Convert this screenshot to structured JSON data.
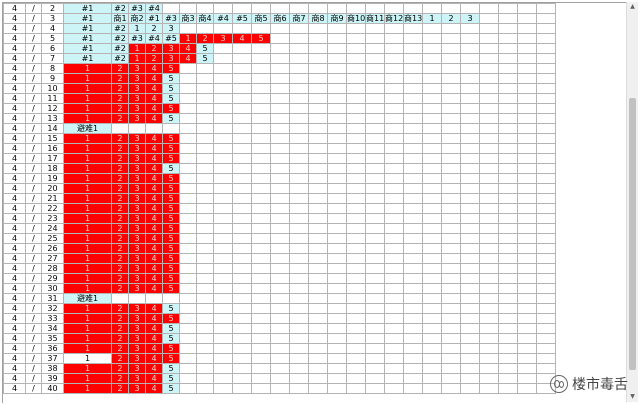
{
  "columns": 30,
  "colors": {
    "cyan": "#cdf5f7",
    "red": "#ff0000",
    "grid": "#b4b4b4"
  },
  "rows": [
    {
      "c0": "4",
      "c1": "/",
      "c2": "2",
      "cells": [
        [
          "c",
          "#1",
          3
        ],
        [
          "c",
          "#2"
        ],
        [
          "c",
          "#3"
        ],
        [
          "c",
          "#4"
        ]
      ]
    },
    {
      "c0": "4",
      "c1": "/",
      "c2": "3",
      "cells": [
        [
          "c",
          "#1",
          3
        ],
        [
          "c",
          "商1"
        ],
        [
          "c",
          "商2"
        ],
        [
          "c",
          "#1"
        ],
        [
          "c",
          "#3"
        ],
        [
          "c",
          "商3"
        ],
        [
          "c",
          "商4"
        ],
        [
          "c",
          "#4"
        ],
        [
          "c",
          "#5"
        ],
        [
          "c",
          "商5"
        ],
        [
          "c",
          "商6"
        ],
        [
          "c",
          "商7"
        ],
        [
          "c",
          "商8"
        ],
        [
          "c",
          "商9"
        ],
        [
          "c",
          "商10"
        ],
        [
          "c",
          "商11"
        ],
        [
          "c",
          "商12"
        ],
        [
          "c",
          "商13"
        ],
        [
          "c",
          "1"
        ],
        [
          "c",
          "2"
        ],
        [
          "c",
          "3"
        ]
      ]
    },
    {
      "c0": "4",
      "c1": "/",
      "c2": "4",
      "cells": [
        [
          "c",
          "#1",
          3
        ],
        [
          "c",
          "#2"
        ],
        [
          "c",
          "1"
        ],
        [
          "c",
          "2"
        ],
        [
          "c",
          "3"
        ]
      ]
    },
    {
      "c0": "4",
      "c1": "/",
      "c2": "5",
      "cells": [
        [
          "c",
          "#1",
          3
        ],
        [
          "c",
          "#2"
        ],
        [
          "c",
          "#3"
        ],
        [
          "c",
          "#4"
        ],
        [
          "c",
          "#5"
        ],
        [
          "r",
          "1"
        ],
        [
          "r",
          "2"
        ],
        [
          "r",
          "3"
        ],
        [
          "r",
          "4"
        ],
        [
          "r",
          "5"
        ]
      ]
    },
    {
      "c0": "4",
      "c1": "/",
      "c2": "6",
      "cells": [
        [
          "c",
          "#1",
          3
        ],
        [
          "c",
          "#2"
        ],
        [
          "r",
          "1"
        ],
        [
          "r",
          "2"
        ],
        [
          "r",
          "3"
        ],
        [
          "r",
          "4"
        ],
        [
          "c",
          "5"
        ]
      ]
    },
    {
      "c0": "4",
      "c1": "/",
      "c2": "7",
      "cells": [
        [
          "c",
          "#1",
          3
        ],
        [
          "c",
          "#2"
        ],
        [
          "r",
          "1"
        ],
        [
          "r",
          "2"
        ],
        [
          "r",
          "3"
        ],
        [
          "r",
          "4"
        ],
        [
          "c",
          "5"
        ]
      ]
    },
    {
      "c0": "4",
      "c1": "/",
      "c2": "8",
      "cells": [
        [
          "r",
          "1",
          3
        ],
        [
          "r",
          "2"
        ],
        [
          "r",
          "3"
        ],
        [
          "r",
          "4"
        ],
        [
          "r",
          "5"
        ]
      ]
    },
    {
      "c0": "4",
      "c1": "/",
      "c2": "9",
      "cells": [
        [
          "r",
          "1",
          3
        ],
        [
          "r",
          "2"
        ],
        [
          "r",
          "3"
        ],
        [
          "r",
          "4"
        ],
        [
          "c",
          "5"
        ]
      ]
    },
    {
      "c0": "4",
      "c1": "/",
      "c2": "10",
      "cells": [
        [
          "r",
          "1",
          3
        ],
        [
          "r",
          "2"
        ],
        [
          "r",
          "3"
        ],
        [
          "r",
          "4"
        ],
        [
          "c",
          "5"
        ]
      ]
    },
    {
      "c0": "4",
      "c1": "/",
      "c2": "11",
      "cells": [
        [
          "r",
          "1",
          3
        ],
        [
          "r",
          "2"
        ],
        [
          "r",
          "3"
        ],
        [
          "r",
          "4"
        ],
        [
          "c",
          "5"
        ]
      ]
    },
    {
      "c0": "4",
      "c1": "/",
      "c2": "12",
      "cells": [
        [
          "r",
          "1",
          3
        ],
        [
          "r",
          "2"
        ],
        [
          "r",
          "3"
        ],
        [
          "r",
          "4"
        ],
        [
          "r",
          "5"
        ]
      ]
    },
    {
      "c0": "4",
      "c1": "/",
      "c2": "13",
      "cells": [
        [
          "r",
          "1",
          3
        ],
        [
          "r",
          "2"
        ],
        [
          "r",
          "3"
        ],
        [
          "r",
          "4"
        ],
        [
          "c",
          "5"
        ]
      ]
    },
    {
      "c0": "4",
      "c1": "/",
      "c2": "14",
      "cells": [
        [
          "c",
          "避难1",
          3
        ]
      ]
    },
    {
      "c0": "4",
      "c1": "/",
      "c2": "15",
      "cells": [
        [
          "r",
          "1",
          3
        ],
        [
          "r",
          "2"
        ],
        [
          "r",
          "3"
        ],
        [
          "r",
          "4"
        ],
        [
          "r",
          "5"
        ]
      ]
    },
    {
      "c0": "4",
      "c1": "/",
      "c2": "16",
      "cells": [
        [
          "r",
          "1",
          3
        ],
        [
          "r",
          "2"
        ],
        [
          "r",
          "3"
        ],
        [
          "r",
          "4"
        ],
        [
          "r",
          "5"
        ]
      ]
    },
    {
      "c0": "4",
      "c1": "/",
      "c2": "17",
      "cells": [
        [
          "r",
          "1",
          3
        ],
        [
          "r",
          "2"
        ],
        [
          "r",
          "3"
        ],
        [
          "r",
          "4"
        ],
        [
          "r",
          "5"
        ]
      ]
    },
    {
      "c0": "4",
      "c1": "/",
      "c2": "18",
      "cells": [
        [
          "r",
          "1",
          3
        ],
        [
          "r",
          "2"
        ],
        [
          "r",
          "3"
        ],
        [
          "r",
          "4"
        ],
        [
          "c",
          "5"
        ]
      ]
    },
    {
      "c0": "4",
      "c1": "/",
      "c2": "19",
      "cells": [
        [
          "r",
          "1",
          3
        ],
        [
          "r",
          "2"
        ],
        [
          "r",
          "3"
        ],
        [
          "r",
          "4"
        ],
        [
          "r",
          "5"
        ]
      ]
    },
    {
      "c0": "4",
      "c1": "/",
      "c2": "20",
      "cells": [
        [
          "r",
          "1",
          3
        ],
        [
          "r",
          "2"
        ],
        [
          "r",
          "3"
        ],
        [
          "r",
          "4"
        ],
        [
          "r",
          "5"
        ]
      ]
    },
    {
      "c0": "4",
      "c1": "/",
      "c2": "21",
      "cells": [
        [
          "r",
          "1",
          3
        ],
        [
          "r",
          "2"
        ],
        [
          "r",
          "3"
        ],
        [
          "r",
          "4"
        ],
        [
          "r",
          "5"
        ]
      ]
    },
    {
      "c0": "4",
      "c1": "/",
      "c2": "22",
      "cells": [
        [
          "r",
          "1",
          3
        ],
        [
          "r",
          "2"
        ],
        [
          "r",
          "3"
        ],
        [
          "r",
          "4"
        ],
        [
          "r",
          "5"
        ]
      ]
    },
    {
      "c0": "4",
      "c1": "/",
      "c2": "23",
      "cells": [
        [
          "r",
          "1",
          3
        ],
        [
          "r",
          "2"
        ],
        [
          "r",
          "3"
        ],
        [
          "r",
          "4"
        ],
        [
          "r",
          "5"
        ]
      ]
    },
    {
      "c0": "4",
      "c1": "/",
      "c2": "24",
      "cells": [
        [
          "r",
          "1",
          3
        ],
        [
          "r",
          "2"
        ],
        [
          "r",
          "3"
        ],
        [
          "r",
          "4"
        ],
        [
          "r",
          "5"
        ]
      ]
    },
    {
      "c0": "4",
      "c1": "/",
      "c2": "25",
      "cells": [
        [
          "r",
          "1",
          3
        ],
        [
          "r",
          "2"
        ],
        [
          "r",
          "3"
        ],
        [
          "r",
          "4"
        ],
        [
          "r",
          "5"
        ]
      ]
    },
    {
      "c0": "4",
      "c1": "/",
      "c2": "26",
      "cells": [
        [
          "r",
          "1",
          3
        ],
        [
          "r",
          "2"
        ],
        [
          "r",
          "3"
        ],
        [
          "r",
          "4"
        ],
        [
          "r",
          "5"
        ]
      ]
    },
    {
      "c0": "4",
      "c1": "/",
      "c2": "27",
      "cells": [
        [
          "r",
          "1",
          3
        ],
        [
          "r",
          "2"
        ],
        [
          "r",
          "3"
        ],
        [
          "r",
          "4"
        ],
        [
          "r",
          "5"
        ]
      ]
    },
    {
      "c0": "4",
      "c1": "/",
      "c2": "28",
      "cells": [
        [
          "r",
          "1",
          3
        ],
        [
          "r",
          "2"
        ],
        [
          "r",
          "3"
        ],
        [
          "r",
          "4"
        ],
        [
          "r",
          "5"
        ]
      ]
    },
    {
      "c0": "4",
      "c1": "/",
      "c2": "29",
      "cells": [
        [
          "r",
          "1",
          3
        ],
        [
          "r",
          "2"
        ],
        [
          "r",
          "3"
        ],
        [
          "r",
          "4"
        ],
        [
          "r",
          "5"
        ]
      ]
    },
    {
      "c0": "4",
      "c1": "/",
      "c2": "30",
      "cells": [
        [
          "r",
          "1",
          3
        ],
        [
          "r",
          "2"
        ],
        [
          "r",
          "3"
        ],
        [
          "r",
          "4"
        ],
        [
          "r",
          "5"
        ]
      ]
    },
    {
      "c0": "4",
      "c1": "/",
      "c2": "31",
      "cells": [
        [
          "c",
          "避难1",
          3
        ]
      ]
    },
    {
      "c0": "4",
      "c1": "/",
      "c2": "32",
      "cells": [
        [
          "r",
          "1",
          3
        ],
        [
          "r",
          "2"
        ],
        [
          "r",
          "3"
        ],
        [
          "r",
          "4"
        ],
        [
          "c",
          "5"
        ]
      ]
    },
    {
      "c0": "4",
      "c1": "/",
      "c2": "33",
      "cells": [
        [
          "r",
          "1",
          3
        ],
        [
          "r",
          "2"
        ],
        [
          "r",
          "3"
        ],
        [
          "r",
          "4"
        ],
        [
          "r",
          "5"
        ]
      ]
    },
    {
      "c0": "4",
      "c1": "/",
      "c2": "34",
      "cells": [
        [
          "r",
          "1",
          3
        ],
        [
          "r",
          "2"
        ],
        [
          "r",
          "3"
        ],
        [
          "r",
          "4"
        ],
        [
          "c",
          "5"
        ]
      ]
    },
    {
      "c0": "4",
      "c1": "/",
      "c2": "35",
      "cells": [
        [
          "r",
          "1",
          3
        ],
        [
          "r",
          "2"
        ],
        [
          "r",
          "3"
        ],
        [
          "r",
          "4"
        ],
        [
          "c",
          "5"
        ]
      ]
    },
    {
      "c0": "4",
      "c1": "/",
      "c2": "36",
      "cells": [
        [
          "r",
          "1",
          3
        ],
        [
          "r",
          "2"
        ],
        [
          "r",
          "3"
        ],
        [
          "r",
          "4"
        ],
        [
          "r",
          "5"
        ]
      ]
    },
    {
      "c0": "4",
      "c1": "/",
      "c2": "37",
      "cells": [
        [
          "w",
          "1",
          3
        ],
        [
          "r",
          "2"
        ],
        [
          "r",
          "3"
        ],
        [
          "r",
          "4"
        ],
        [
          "r",
          "5"
        ]
      ]
    },
    {
      "c0": "4",
      "c1": "/",
      "c2": "38",
      "cells": [
        [
          "r",
          "1",
          3
        ],
        [
          "r",
          "2"
        ],
        [
          "r",
          "3"
        ],
        [
          "r",
          "4"
        ],
        [
          "c",
          "5"
        ]
      ]
    },
    {
      "c0": "4",
      "c1": "/",
      "c2": "39",
      "cells": [
        [
          "r",
          "1",
          3
        ],
        [
          "r",
          "2"
        ],
        [
          "r",
          "3"
        ],
        [
          "r",
          "4"
        ],
        [
          "c",
          "5"
        ]
      ]
    },
    {
      "c0": "4",
      "c1": "/",
      "c2": "40",
      "cells": [
        [
          "r",
          "1",
          3
        ],
        [
          "r",
          "2"
        ],
        [
          "r",
          "3"
        ],
        [
          "r",
          "4"
        ],
        [
          "c",
          "5"
        ]
      ]
    }
  ],
  "watermark": {
    "text": "楼市毒舌"
  }
}
